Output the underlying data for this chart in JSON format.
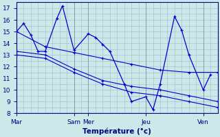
{
  "xlabel": "Température (°c)",
  "background_color": "#cce8e8",
  "grid_color": "#99bbcc",
  "line_color": "#0000cc",
  "x_tick_positions": [
    0,
    4,
    5,
    9,
    13
  ],
  "x_tick_labels": [
    "Mar",
    "Sam",
    "Mer",
    "Jeu",
    "Ven"
  ],
  "ylim": [
    8,
    17.5
  ],
  "yticks": [
    8,
    9,
    10,
    11,
    12,
    13,
    14,
    15,
    16,
    17
  ],
  "xlim": [
    0,
    14
  ],
  "series1_x": [
    0,
    0.5,
    1.0,
    1.5,
    2.0,
    2.8,
    3.2,
    4.0,
    5.0,
    5.5,
    6.0,
    6.5,
    7.5,
    8.0,
    9.0,
    9.5,
    10.0,
    11.0,
    11.5,
    12.0,
    13.0,
    13.5
  ],
  "series1_y": [
    15.0,
    15.7,
    14.7,
    13.3,
    13.3,
    16.1,
    17.2,
    13.4,
    14.8,
    14.5,
    13.9,
    13.3,
    10.5,
    9.0,
    9.4,
    8.3,
    10.5,
    16.3,
    15.1,
    13.0,
    10.0,
    11.3
  ],
  "series2_x": [
    0,
    2.0,
    4.0,
    6.0,
    8.0,
    10.0,
    12.0,
    14.0
  ],
  "series2_y": [
    15.0,
    13.7,
    13.2,
    12.7,
    12.2,
    11.7,
    11.5,
    11.5
  ],
  "series3_x": [
    0,
    2.0,
    4.0,
    6.0,
    8.0,
    10.0,
    12.0,
    14.0
  ],
  "series3_y": [
    13.3,
    13.0,
    11.8,
    10.8,
    10.3,
    10.0,
    9.5,
    9.0
  ],
  "series4_x": [
    0,
    2.0,
    4.0,
    6.0,
    8.0,
    10.0,
    12.0,
    14.0
  ],
  "series4_y": [
    13.0,
    12.7,
    11.5,
    10.5,
    9.8,
    9.5,
    9.0,
    8.5
  ]
}
